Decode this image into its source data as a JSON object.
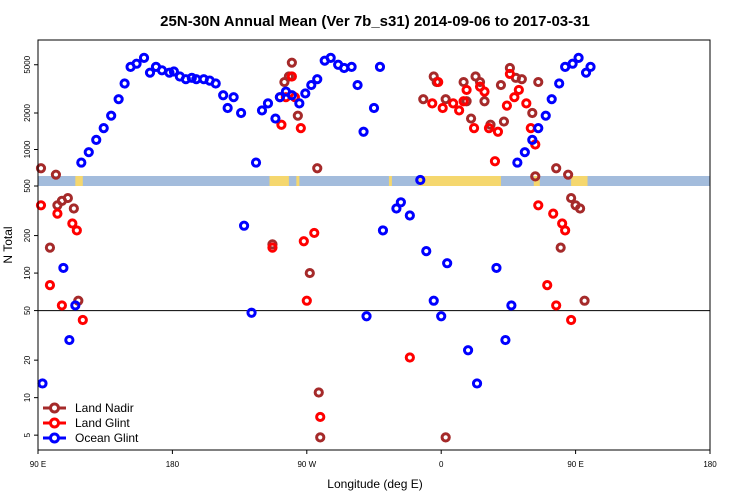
{
  "chart_data": {
    "type": "scatter",
    "title": "25N-30N Annual Mean (Ver 7b_s31)   2014-09-06 to 2017-03-31",
    "xlabel": "Longitude (deg E)",
    "ylabel": "N Total",
    "x_ticks": [
      {
        "value": 90,
        "label": "90 E"
      },
      {
        "value": 180,
        "label": "180"
      },
      {
        "value": 270,
        "label": "90 W"
      },
      {
        "value": 360,
        "label": "0"
      },
      {
        "value": 450,
        "label": "90 E"
      },
      {
        "value": 540,
        "label": "180"
      }
    ],
    "xlim": [
      90,
      540
    ],
    "y_ticks_lower": [
      5,
      10,
      20,
      50,
      100,
      200
    ],
    "y_ticks_upper": [
      500,
      1000,
      2000,
      5000
    ],
    "ylim_lower": [
      3.8,
      500
    ],
    "ylim_upper": [
      500,
      8000
    ],
    "reference_line": 50,
    "land_mask_color": "#f5d76e",
    "ocean_mask_color": "#a3bcdc",
    "land_spans": [
      [
        115,
        120
      ],
      [
        245,
        258
      ],
      [
        263,
        265
      ],
      [
        325,
        327
      ],
      [
        345,
        400
      ],
      [
        422,
        426
      ],
      [
        447,
        458
      ]
    ],
    "legend": [
      {
        "name": "Land Nadir",
        "color": "#a52a2a"
      },
      {
        "name": "Land Glint",
        "color": "#ff0000"
      },
      {
        "name": "Ocean Glint",
        "color": "#0000ff"
      }
    ],
    "series": [
      {
        "name": "Land Nadir",
        "color": "#a52a2a",
        "points": [
          [
            92,
            700
          ],
          [
            102,
            620
          ],
          [
            103,
            350
          ],
          [
            106,
            380
          ],
          [
            110,
            400
          ],
          [
            114,
            330
          ],
          [
            117,
            60
          ],
          [
            98,
            160
          ],
          [
            247,
            170
          ],
          [
            252,
            2700
          ],
          [
            255,
            3600
          ],
          [
            258,
            4000
          ],
          [
            260,
            5200
          ],
          [
            264,
            1900
          ],
          [
            272,
            100
          ],
          [
            277,
            700
          ],
          [
            278,
            11
          ],
          [
            279,
            4.8
          ],
          [
            348,
            2600
          ],
          [
            355,
            4000
          ],
          [
            357,
            3600
          ],
          [
            363,
            2600
          ],
          [
            363,
            4.8
          ],
          [
            375,
            3600
          ],
          [
            377,
            2500
          ],
          [
            380,
            1800
          ],
          [
            383,
            4000
          ],
          [
            386,
            3600
          ],
          [
            389,
            2500
          ],
          [
            393,
            1600
          ],
          [
            400,
            3400
          ],
          [
            402,
            1700
          ],
          [
            406,
            4700
          ],
          [
            410,
            3900
          ],
          [
            414,
            3800
          ],
          [
            421,
            2000
          ],
          [
            423,
            600
          ],
          [
            425,
            3600
          ],
          [
            437,
            700
          ],
          [
            440,
            160
          ],
          [
            445,
            620
          ],
          [
            447,
            400
          ],
          [
            450,
            350
          ],
          [
            453,
            330
          ],
          [
            456,
            60
          ]
        ]
      },
      {
        "name": "Land Glint",
        "color": "#ff0000",
        "points": [
          [
            92,
            350
          ],
          [
            98,
            80
          ],
          [
            103,
            300
          ],
          [
            106,
            55
          ],
          [
            113,
            250
          ],
          [
            116,
            220
          ],
          [
            120,
            42
          ],
          [
            247,
            160
          ],
          [
            253,
            1600
          ],
          [
            256,
            2700
          ],
          [
            260,
            4000
          ],
          [
            262,
            2700
          ],
          [
            266,
            1500
          ],
          [
            268,
            180
          ],
          [
            270,
            60
          ],
          [
            275,
            210
          ],
          [
            279,
            7
          ],
          [
            339,
            21
          ],
          [
            354,
            2400
          ],
          [
            358,
            3600
          ],
          [
            361,
            2200
          ],
          [
            368,
            2400
          ],
          [
            372,
            2100
          ],
          [
            375,
            2500
          ],
          [
            377,
            3100
          ],
          [
            382,
            1500
          ],
          [
            386,
            3300
          ],
          [
            389,
            3000
          ],
          [
            392,
            1500
          ],
          [
            396,
            800
          ],
          [
            398,
            1400
          ],
          [
            404,
            2300
          ],
          [
            406,
            4200
          ],
          [
            409,
            2700
          ],
          [
            412,
            3100
          ],
          [
            417,
            2400
          ],
          [
            420,
            1500
          ],
          [
            423,
            1100
          ],
          [
            425,
            350
          ],
          [
            431,
            80
          ],
          [
            435,
            300
          ],
          [
            437,
            55
          ],
          [
            441,
            250
          ],
          [
            443,
            220
          ],
          [
            447,
            42
          ]
        ]
      },
      {
        "name": "Ocean Glint",
        "color": "#0000ff",
        "points": [
          [
            93,
            13
          ],
          [
            107,
            110
          ],
          [
            111,
            29
          ],
          [
            115,
            55
          ],
          [
            119,
            780
          ],
          [
            124,
            950
          ],
          [
            129,
            1200
          ],
          [
            134,
            1500
          ],
          [
            139,
            1900
          ],
          [
            144,
            2600
          ],
          [
            148,
            3500
          ],
          [
            152,
            4800
          ],
          [
            156,
            5100
          ],
          [
            161,
            5700
          ],
          [
            165,
            4300
          ],
          [
            169,
            4800
          ],
          [
            173,
            4500
          ],
          [
            178,
            4300
          ],
          [
            181,
            4400
          ],
          [
            185,
            4000
          ],
          [
            189,
            3800
          ],
          [
            193,
            3900
          ],
          [
            196,
            3800
          ],
          [
            201,
            3800
          ],
          [
            205,
            3700
          ],
          [
            209,
            3500
          ],
          [
            214,
            2800
          ],
          [
            217,
            2200
          ],
          [
            221,
            2700
          ],
          [
            226,
            2000
          ],
          [
            228,
            240
          ],
          [
            233,
            48
          ],
          [
            236,
            780
          ],
          [
            240,
            2100
          ],
          [
            244,
            2400
          ],
          [
            249,
            1800
          ],
          [
            252,
            2700
          ],
          [
            256,
            3000
          ],
          [
            260,
            2800
          ],
          [
            265,
            2400
          ],
          [
            269,
            2900
          ],
          [
            273,
            3400
          ],
          [
            277,
            3800
          ],
          [
            282,
            5400
          ],
          [
            286,
            5700
          ],
          [
            291,
            5000
          ],
          [
            295,
            4700
          ],
          [
            300,
            4800
          ],
          [
            304,
            3400
          ],
          [
            308,
            1400
          ],
          [
            310,
            45
          ],
          [
            315,
            2200
          ],
          [
            319,
            4800
          ],
          [
            321,
            220
          ],
          [
            330,
            330
          ],
          [
            333,
            370
          ],
          [
            339,
            290
          ],
          [
            346,
            560
          ],
          [
            350,
            150
          ],
          [
            355,
            60
          ],
          [
            360,
            45
          ],
          [
            364,
            120
          ],
          [
            378,
            24
          ],
          [
            384,
            13
          ],
          [
            397,
            110
          ],
          [
            403,
            29
          ],
          [
            407,
            55
          ],
          [
            411,
            780
          ],
          [
            416,
            950
          ],
          [
            421,
            1200
          ],
          [
            425,
            1500
          ],
          [
            430,
            1900
          ],
          [
            434,
            2600
          ],
          [
            439,
            3500
          ],
          [
            443,
            4800
          ],
          [
            448,
            5100
          ],
          [
            452,
            5700
          ],
          [
            457,
            4300
          ],
          [
            460,
            4800
          ]
        ]
      }
    ]
  }
}
